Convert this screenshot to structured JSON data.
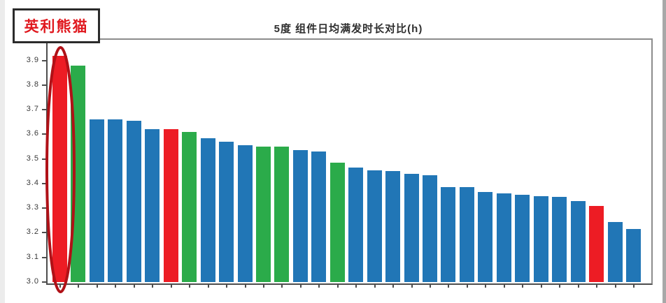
{
  "title": "5度 组件日均满发时长对比(h)",
  "annotation": {
    "callout_label": "英利熊猫",
    "callout_text_color": "#e0181e",
    "ellipse_color": "#b01117",
    "highlighted_bar_index": 0
  },
  "chart_data": {
    "type": "bar",
    "title": "5度 组件日均满发时长对比(h)",
    "xlabel": "",
    "ylabel": "",
    "ylim": [
      3.0,
      3.99
    ],
    "yticks": [
      "3.0",
      "3.1",
      "3.2",
      "3.3",
      "3.4",
      "3.5",
      "3.6",
      "3.7",
      "3.8",
      "3.9"
    ],
    "grid": false,
    "legend": "none",
    "values": [
      3.92,
      3.88,
      3.66,
      3.66,
      3.655,
      3.62,
      3.62,
      3.61,
      3.585,
      3.57,
      3.555,
      3.55,
      3.55,
      3.535,
      3.53,
      3.485,
      3.465,
      3.455,
      3.45,
      3.44,
      3.435,
      3.385,
      3.385,
      3.365,
      3.36,
      3.355,
      3.35,
      3.345,
      3.33,
      3.31,
      3.245,
      3.215
    ],
    "bar_colors": [
      "red",
      "green",
      "blue",
      "blue",
      "blue",
      "blue",
      "red",
      "green",
      "blue",
      "blue",
      "blue",
      "green",
      "green",
      "blue",
      "blue",
      "green",
      "blue",
      "blue",
      "blue",
      "blue",
      "blue",
      "blue",
      "blue",
      "blue",
      "blue",
      "blue",
      "blue",
      "blue",
      "blue",
      "red",
      "blue",
      "blue"
    ],
    "palette": {
      "blue": "#2176b6",
      "green": "#2bab4a",
      "red": "#ed1c24"
    }
  }
}
